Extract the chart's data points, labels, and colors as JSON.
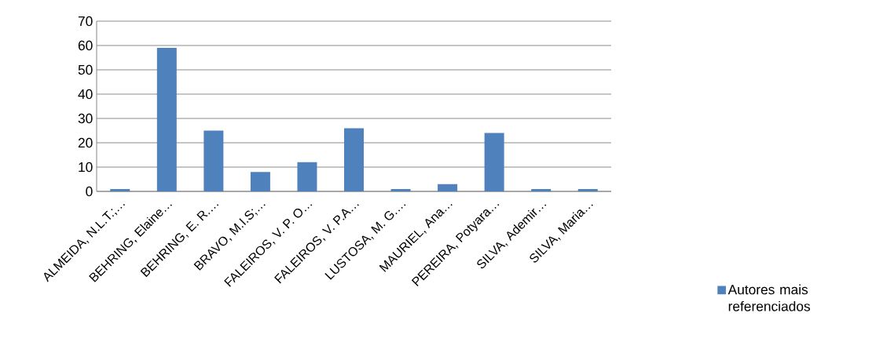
{
  "chart_data": {
    "type": "bar",
    "categories": [
      "ALMEIDA, N.L.T.;…",
      "BEHRING, Elaine…",
      "BEHRING, E. R.…",
      "BRAVO, M.I.S;…",
      "FALEIROS, V. P. O…",
      "FALEIROS, V. P.A…",
      "LUSTOSA, M. G.…",
      "MAURIEL, Ana…",
      "PEREIRA, Potyara…",
      "SILVA, Ademir…",
      "SILVA, Maria…"
    ],
    "series": [
      {
        "name": "Autores mais referenciados",
        "color": "#4f81bd",
        "values": [
          1,
          59,
          25,
          8,
          12,
          26,
          1,
          3,
          24,
          1,
          1
        ]
      }
    ],
    "ylim": [
      0,
      70
    ],
    "yticks": [
      0,
      10,
      20,
      30,
      40,
      50,
      60,
      70
    ],
    "grid": "y",
    "legend": "bottom right"
  }
}
